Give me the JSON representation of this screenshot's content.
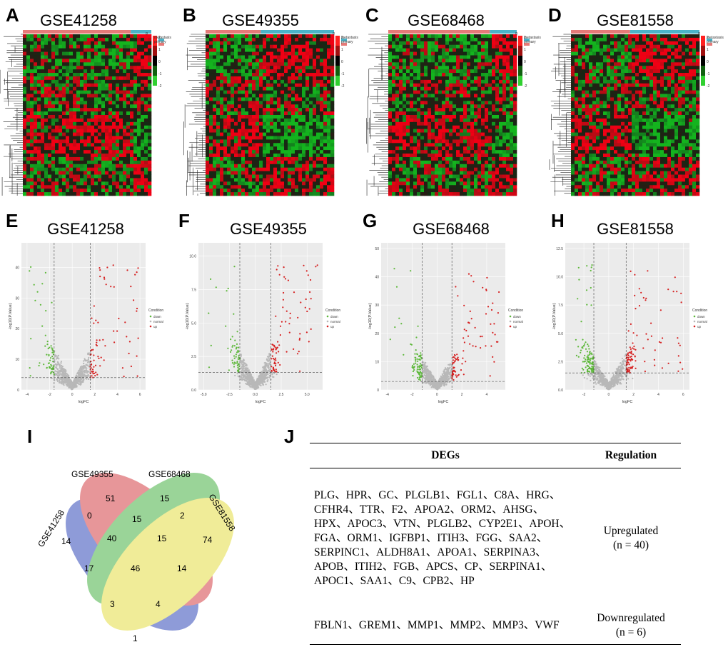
{
  "panels": {
    "heatmaps": [
      {
        "letter": "A",
        "title": "GSE41258",
        "split": 0.84
      },
      {
        "letter": "B",
        "title": "GSE49355",
        "split": 0.43
      },
      {
        "letter": "C",
        "title": "GSE68468",
        "split": 0.79
      },
      {
        "letter": "D",
        "title": "GSE81558",
        "split": 0.46
      }
    ],
    "heatmap_legend": {
      "group_title": "g",
      "groups": [
        "metastasis",
        "primary"
      ],
      "scale": [
        "2",
        "1",
        "0",
        "-1",
        "-2"
      ],
      "group_colors": [
        "#4bb3c8",
        "#e57a78"
      ]
    },
    "volcanos": [
      {
        "letter": "E",
        "title": "GSE41258",
        "yticks": [
          "0",
          "10",
          "20",
          "30",
          "40"
        ],
        "xticks": [
          "-4",
          "-2",
          "0",
          "2",
          "4",
          "6"
        ]
      },
      {
        "letter": "F",
        "title": "GSE49355",
        "yticks": [
          "0.0",
          "2.5",
          "5.0",
          "7.5",
          "10.0"
        ],
        "xticks": [
          "-5.0",
          "-2.5",
          "0.0",
          "2.5",
          "5.0"
        ]
      },
      {
        "letter": "G",
        "title": "GSE68468",
        "yticks": [
          "0",
          "10",
          "20",
          "30",
          "40",
          "50"
        ],
        "xticks": [
          "-4",
          "-2",
          "0",
          "2",
          "4"
        ]
      },
      {
        "letter": "H",
        "title": "GSE81558",
        "yticks": [
          "0.0",
          "2.5",
          "5.0",
          "7.5",
          "10.0",
          "12.5"
        ],
        "xticks": [
          "-2",
          "0",
          "2",
          "4",
          "6"
        ]
      }
    ],
    "volcano_axes": {
      "xlabel": "logFC",
      "ylabel": "-log10(P.Value)"
    },
    "volcano_legend": {
      "title": "Condition",
      "items": [
        "down",
        "normal",
        "up"
      ],
      "colors": [
        "#5db83a",
        "#b8b8b8",
        "#d62020"
      ]
    }
  },
  "venn": {
    "letter": "I",
    "sets": [
      "GSE41258",
      "GSE49355",
      "GSE68468",
      "GSE81558"
    ],
    "counts": {
      "n1": "51",
      "n2": "15",
      "n3": "0",
      "n4": "15",
      "n5": "2",
      "n6": "14",
      "n7": "40",
      "n8": "15",
      "n9": "74",
      "n10": "17",
      "n11": "46",
      "n12": "14",
      "n13": "3",
      "n14": "4",
      "n15": "1"
    },
    "colors": [
      "#4a5fc1",
      "#d9565c",
      "#5dbb5a",
      "#e8e25a"
    ]
  },
  "table": {
    "letter": "J",
    "col_degs": "DEGs",
    "col_regulation": "Regulation",
    "rows": [
      {
        "genes": "PLG、HPR、GC、PLGLB1、FGL1、C8A、HRG、CFHR4、TTR、F2、APOA2、ORM2、AHSG、HPX、APOC3、VTN、PLGLB2、CYP2E1、APOH、FGA、ORM1、IGFBP1、ITIH3、FGG、SAA2、SERPINC1、ALDH8A1、APOA1、SERPINA3、APOB、ITIH2、FGB、APCS、CP、SERPINA1、APOC1、SAA1、C9、CPB2、HP",
        "regulation": "Upregulated",
        "n": "(n = 40)"
      },
      {
        "genes": "FBLN1、GREM1、MMP1、MMP2、MMP3、VWF",
        "regulation": "Downregulated",
        "n": "(n = 6)"
      }
    ]
  }
}
